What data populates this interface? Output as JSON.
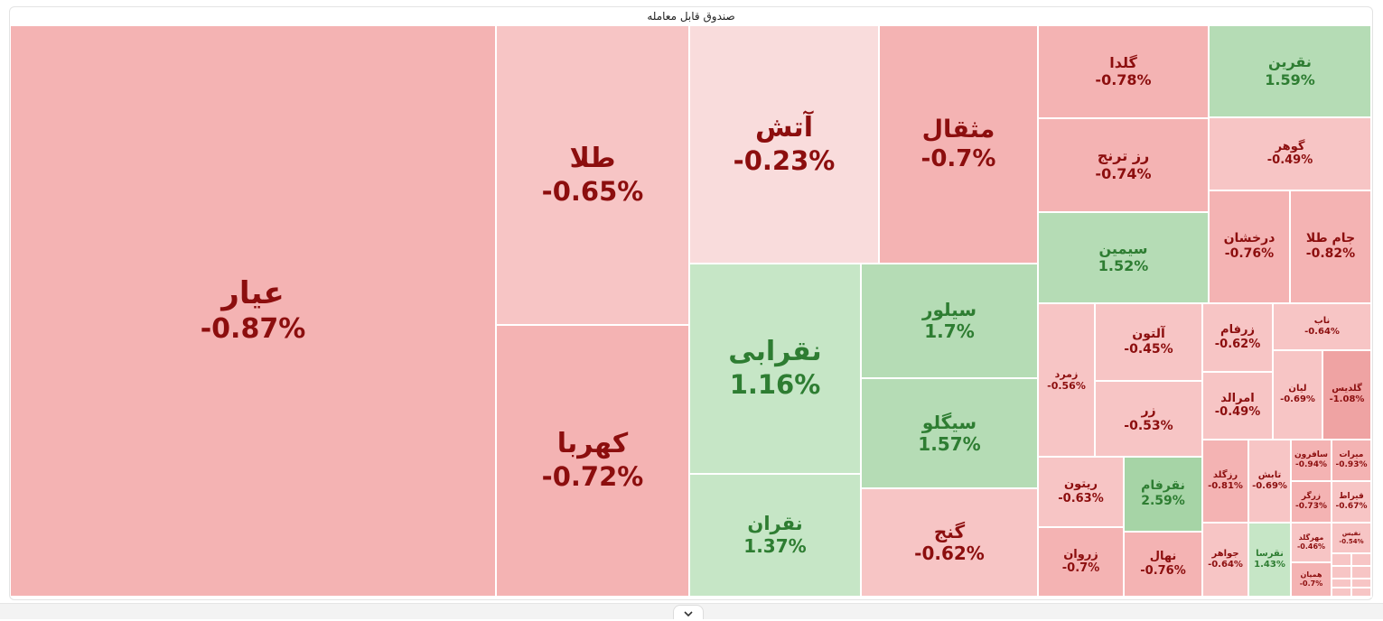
{
  "title": "صندوق قابل معامله",
  "icons": {
    "expand": "chevron-down-icon"
  },
  "colors": {
    "negative_text": "#8c0e0e",
    "positive_text": "#2e7d32",
    "negative_fill": [
      "#f9dcdc",
      "#f7c5c5",
      "#f4b3b3",
      "#efa3a3"
    ],
    "positive_fill": [
      "#c6e6c6",
      "#b5dcb5",
      "#a6d4a6"
    ]
  },
  "chart_data": {
    "type": "treemap",
    "title": "صندوق قابل معامله",
    "items": [
      {
        "name": "عیار",
        "change": "-0.87%",
        "value": -0.87
      },
      {
        "name": "طلا",
        "change": "-0.65%",
        "value": -0.65
      },
      {
        "name": "کهربا",
        "change": "-0.72%",
        "value": -0.72
      },
      {
        "name": "آتش",
        "change": "-0.23%",
        "value": -0.23
      },
      {
        "name": "مثقال",
        "change": "-0.7%",
        "value": -0.7
      },
      {
        "name": "نقرابی",
        "change": "1.16%",
        "value": 1.16
      },
      {
        "name": "نقران",
        "change": "1.37%",
        "value": 1.37
      },
      {
        "name": "سیلور",
        "change": "1.7%",
        "value": 1.7
      },
      {
        "name": "سیگلو",
        "change": "1.57%",
        "value": 1.57
      },
      {
        "name": "گنج",
        "change": "-0.62%",
        "value": -0.62
      },
      {
        "name": "گلدا",
        "change": "-0.78%",
        "value": -0.78
      },
      {
        "name": "رز ترنج",
        "change": "-0.74%",
        "value": -0.74
      },
      {
        "name": "سیمین",
        "change": "1.52%",
        "value": 1.52
      },
      {
        "name": "نقرین",
        "change": "1.59%",
        "value": 1.59
      },
      {
        "name": "گوهر",
        "change": "-0.49%",
        "value": -0.49
      },
      {
        "name": "درخشان",
        "change": "-0.76%",
        "value": -0.76
      },
      {
        "name": "جام طلا",
        "change": "-0.82%",
        "value": -0.82
      },
      {
        "name": "زمرد",
        "change": "-0.56%",
        "value": -0.56
      },
      {
        "name": "آلتون",
        "change": "-0.45%",
        "value": -0.45
      },
      {
        "name": "زر",
        "change": "-0.53%",
        "value": -0.53
      },
      {
        "name": "ریتون",
        "change": "-0.63%",
        "value": -0.63
      },
      {
        "name": "نقرفام",
        "change": "2.59%",
        "value": 2.59
      },
      {
        "name": "زروان",
        "change": "-0.7%",
        "value": -0.7
      },
      {
        "name": "نهال",
        "change": "-0.76%",
        "value": -0.76
      },
      {
        "name": "زرفام",
        "change": "-0.62%",
        "value": -0.62
      },
      {
        "name": "امرالد",
        "change": "-0.49%",
        "value": -0.49
      },
      {
        "name": "ناب",
        "change": "-0.64%",
        "value": -0.64
      },
      {
        "name": "لیان",
        "change": "-0.69%",
        "value": -0.69
      },
      {
        "name": "گلدیس",
        "change": "-1.08%",
        "value": -1.08
      },
      {
        "name": "رزگلد",
        "change": "-0.81%",
        "value": -0.81
      },
      {
        "name": "تابش",
        "change": "-0.69%",
        "value": -0.69
      },
      {
        "name": "جواهر",
        "change": "-0.64%",
        "value": -0.64
      },
      {
        "name": "نقرسا",
        "change": "1.43%",
        "value": 1.43
      },
      {
        "name": "سافرون",
        "change": "-0.94%",
        "value": -0.94
      },
      {
        "name": "میرات",
        "change": "-0.93%",
        "value": -0.93
      },
      {
        "name": "زرگر",
        "change": "-0.73%",
        "value": -0.73
      },
      {
        "name": "قیراط",
        "change": "-0.67%",
        "value": -0.67
      },
      {
        "name": "مهرگلد",
        "change": "-0.46%",
        "value": -0.46
      },
      {
        "name": "نفیس",
        "change": "-0.54%",
        "value": -0.54
      },
      {
        "name": "همیان",
        "change": "-0.7%",
        "value": -0.7
      }
    ]
  }
}
